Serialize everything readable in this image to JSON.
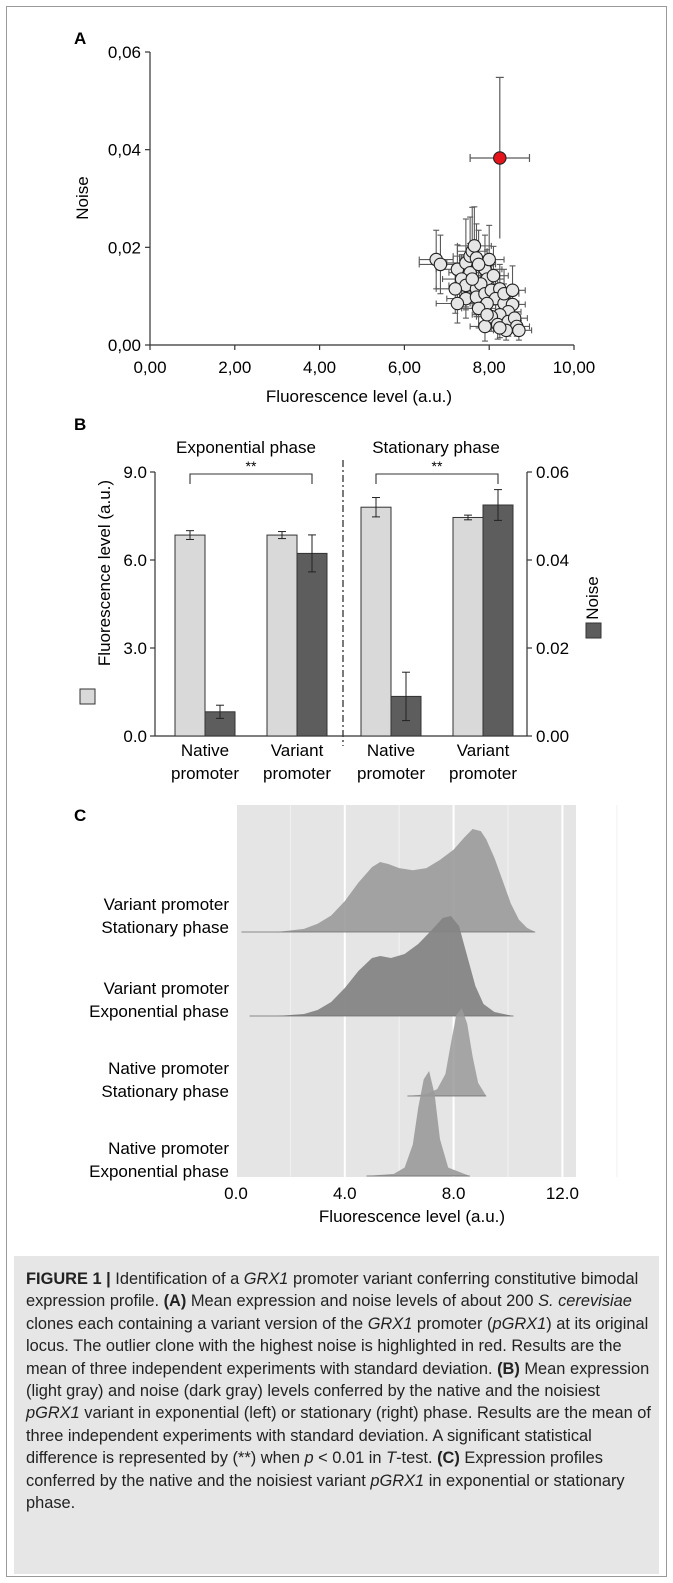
{
  "panels": {
    "a": "A",
    "b": "B",
    "c": "C"
  },
  "chart_data": [
    {
      "panel": "A",
      "type": "scatter",
      "xlabel": "Fluorescence level (a.u.)",
      "ylabel": "Noise",
      "xlim": [
        0,
        10
      ],
      "ylim": [
        0,
        0.06
      ],
      "xticks": [
        "0,00",
        "2,00",
        "4,00",
        "6,00",
        "8,00",
        "10,00"
      ],
      "yticks": [
        "0,00",
        "0,02",
        "0,04",
        "0,06"
      ],
      "colors": {
        "points": "#e6e6e6",
        "outlier": "#e5141b",
        "errorbars": "#5a5a5a"
      },
      "outlier": {
        "x": 8.25,
        "y": 0.0383,
        "xerr": 0.7,
        "yerr": 0.0165
      },
      "points": [
        {
          "x": 6.75,
          "y": 0.0175,
          "xerr": 0.4,
          "yerr": 0.006
        },
        {
          "x": 6.85,
          "y": 0.0165,
          "xerr": 0.5,
          "yerr": 0.006
        },
        {
          "x": 7.25,
          "y": 0.0155,
          "xerr": 0.5,
          "yerr": 0.005
        },
        {
          "x": 7.45,
          "y": 0.0168,
          "xerr": 0.45,
          "yerr": 0.009
        },
        {
          "x": 7.55,
          "y": 0.0182,
          "xerr": 0.4,
          "yerr": 0.008
        },
        {
          "x": 7.6,
          "y": 0.0192,
          "xerr": 0.35,
          "yerr": 0.009
        },
        {
          "x": 7.65,
          "y": 0.0203,
          "xerr": 0.4,
          "yerr": 0.008
        },
        {
          "x": 7.7,
          "y": 0.0178,
          "xerr": 0.4,
          "yerr": 0.007
        },
        {
          "x": 7.55,
          "y": 0.0148,
          "xerr": 0.5,
          "yerr": 0.006
        },
        {
          "x": 7.35,
          "y": 0.0135,
          "xerr": 0.45,
          "yerr": 0.005
        },
        {
          "x": 7.45,
          "y": 0.0122,
          "xerr": 0.4,
          "yerr": 0.005
        },
        {
          "x": 7.7,
          "y": 0.0115,
          "xerr": 0.4,
          "yerr": 0.005
        },
        {
          "x": 7.9,
          "y": 0.0155,
          "xerr": 0.4,
          "yerr": 0.007
        },
        {
          "x": 7.95,
          "y": 0.0135,
          "xerr": 0.4,
          "yerr": 0.006
        },
        {
          "x": 8.1,
          "y": 0.0142,
          "xerr": 0.35,
          "yerr": 0.006
        },
        {
          "x": 7.8,
          "y": 0.0125,
          "xerr": 0.4,
          "yerr": 0.005
        },
        {
          "x": 7.45,
          "y": 0.0095,
          "xerr": 0.45,
          "yerr": 0.004
        },
        {
          "x": 7.7,
          "y": 0.0098,
          "xerr": 0.4,
          "yerr": 0.004
        },
        {
          "x": 7.9,
          "y": 0.0105,
          "xerr": 0.4,
          "yerr": 0.004
        },
        {
          "x": 8.05,
          "y": 0.0112,
          "xerr": 0.4,
          "yerr": 0.005
        },
        {
          "x": 8.25,
          "y": 0.0115,
          "xerr": 0.35,
          "yerr": 0.005
        },
        {
          "x": 8.15,
          "y": 0.0095,
          "xerr": 0.35,
          "yerr": 0.004
        },
        {
          "x": 7.95,
          "y": 0.0085,
          "xerr": 0.4,
          "yerr": 0.004
        },
        {
          "x": 7.75,
          "y": 0.0075,
          "xerr": 0.4,
          "yerr": 0.004
        },
        {
          "x": 8.35,
          "y": 0.0085,
          "xerr": 0.35,
          "yerr": 0.004
        },
        {
          "x": 8.55,
          "y": 0.0083,
          "xerr": 0.3,
          "yerr": 0.004
        },
        {
          "x": 8.45,
          "y": 0.0068,
          "xerr": 0.3,
          "yerr": 0.003
        },
        {
          "x": 8.25,
          "y": 0.0062,
          "xerr": 0.35,
          "yerr": 0.003
        },
        {
          "x": 8.05,
          "y": 0.0058,
          "xerr": 0.35,
          "yerr": 0.003
        },
        {
          "x": 8.2,
          "y": 0.0042,
          "xerr": 0.3,
          "yerr": 0.003
        },
        {
          "x": 8.45,
          "y": 0.0048,
          "xerr": 0.3,
          "yerr": 0.003
        },
        {
          "x": 8.6,
          "y": 0.0055,
          "xerr": 0.3,
          "yerr": 0.003
        },
        {
          "x": 8.65,
          "y": 0.0038,
          "xerr": 0.3,
          "yerr": 0.002
        },
        {
          "x": 8.4,
          "y": 0.003,
          "xerr": 0.3,
          "yerr": 0.002
        },
        {
          "x": 8.25,
          "y": 0.0035,
          "xerr": 0.3,
          "yerr": 0.002
        },
        {
          "x": 7.9,
          "y": 0.0038,
          "xerr": 0.35,
          "yerr": 0.003
        },
        {
          "x": 8.7,
          "y": 0.003,
          "xerr": 0.3,
          "yerr": 0.002
        },
        {
          "x": 7.25,
          "y": 0.0085,
          "xerr": 0.5,
          "yerr": 0.004
        },
        {
          "x": 7.2,
          "y": 0.0115,
          "xerr": 0.45,
          "yerr": 0.005
        },
        {
          "x": 8.35,
          "y": 0.0105,
          "xerr": 0.35,
          "yerr": 0.005
        },
        {
          "x": 8.0,
          "y": 0.0175,
          "xerr": 0.35,
          "yerr": 0.007
        },
        {
          "x": 7.75,
          "y": 0.0165,
          "xerr": 0.4,
          "yerr": 0.007
        },
        {
          "x": 7.6,
          "y": 0.0135,
          "xerr": 0.4,
          "yerr": 0.006
        },
        {
          "x": 7.95,
          "y": 0.0062,
          "xerr": 0.35,
          "yerr": 0.003
        },
        {
          "x": 8.55,
          "y": 0.0112,
          "xerr": 0.3,
          "yerr": 0.005
        }
      ]
    },
    {
      "panel": "B",
      "type": "bar",
      "groups": [
        "Exponential phase",
        "Stationary phase"
      ],
      "categories": [
        {
          "line1": "Native",
          "line2": "promoter"
        },
        {
          "line1": "Variant",
          "line2": "promoter"
        },
        {
          "line1": "Native",
          "line2": "promoter"
        },
        {
          "line1": "Variant",
          "line2": "promoter"
        }
      ],
      "left_axis": {
        "label": "Fluorescence level (a.u.)",
        "ylim": [
          0,
          9
        ],
        "ticks": [
          "0.0",
          "3.0",
          "6.0",
          "9.0"
        ]
      },
      "right_axis": {
        "label": "Noise",
        "ylim": [
          0,
          0.06
        ],
        "ticks": [
          "0.00",
          "0.02",
          "0.04",
          "0.06"
        ]
      },
      "series": [
        {
          "axis": "left",
          "color": "#d9d9d9",
          "values": [
            6.85,
            6.85,
            7.8,
            7.45
          ],
          "errors": [
            0.15,
            0.12,
            0.33,
            0.08
          ]
        },
        {
          "axis": "right",
          "color": "#5d5d5d",
          "values": [
            0.0055,
            0.0415,
            0.009,
            0.0525
          ],
          "errors": [
            0.0015,
            0.0042,
            0.0055,
            0.0035
          ]
        }
      ],
      "significance": [
        {
          "from": 0,
          "to": 1,
          "label": "**"
        },
        {
          "from": 2,
          "to": 3,
          "label": "**"
        }
      ]
    },
    {
      "panel": "C",
      "type": "area",
      "xlabel": "Fluorescence level (a.u.)",
      "xlim": [
        0,
        12.5
      ],
      "xticks": [
        "0.0",
        "4.0",
        "8.0",
        "12.0"
      ],
      "colors": {
        "background": "#e5e5e5",
        "fill": "#858585",
        "fill_light": "#9a9a9a"
      },
      "rows": [
        {
          "line1": "Variant promoter",
          "line2": "Stationary phase",
          "x": [
            0.2,
            1.5,
            2.5,
            3.0,
            3.5,
            4.0,
            4.5,
            5.0,
            5.3,
            5.6,
            6.0,
            6.5,
            7.0,
            7.5,
            8.0,
            8.4,
            8.7,
            9.0,
            9.2,
            9.5,
            9.8,
            10.1,
            10.4,
            10.7,
            11.0
          ],
          "y": [
            0,
            0.0,
            0.03,
            0.08,
            0.16,
            0.3,
            0.48,
            0.63,
            0.68,
            0.66,
            0.62,
            0.6,
            0.62,
            0.7,
            0.8,
            0.92,
            1.0,
            0.98,
            0.9,
            0.72,
            0.5,
            0.28,
            0.12,
            0.04,
            0
          ]
        },
        {
          "line1": "Variant promoter",
          "line2": "Exponential phase",
          "x": [
            0.5,
            1.5,
            2.5,
            3.0,
            3.5,
            4.0,
            4.5,
            5.0,
            5.3,
            5.7,
            6.2,
            6.7,
            7.2,
            7.6,
            7.9,
            8.2,
            8.5,
            8.8,
            9.1,
            9.5,
            10.2
          ],
          "y": [
            0,
            0.0,
            0.02,
            0.06,
            0.14,
            0.28,
            0.45,
            0.58,
            0.6,
            0.58,
            0.62,
            0.72,
            0.86,
            0.98,
            1.0,
            0.9,
            0.6,
            0.3,
            0.12,
            0.04,
            0
          ]
        },
        {
          "line1": "Native promoter",
          "line2": "Stationary phase",
          "x": [
            6.3,
            7.0,
            7.4,
            7.7,
            7.9,
            8.1,
            8.3,
            8.5,
            8.7,
            8.9,
            9.2
          ],
          "y": [
            0,
            0.02,
            0.08,
            0.25,
            0.6,
            0.92,
            1.0,
            0.82,
            0.45,
            0.15,
            0
          ]
        },
        {
          "line1": "Native promoter",
          "line2": "Exponential phase",
          "x": [
            4.8,
            5.8,
            6.2,
            6.5,
            6.7,
            6.9,
            7.1,
            7.3,
            7.5,
            7.8,
            8.6
          ],
          "y": [
            0,
            0.02,
            0.08,
            0.3,
            0.65,
            0.92,
            1.0,
            0.78,
            0.35,
            0.08,
            0
          ]
        }
      ]
    }
  ]
}
